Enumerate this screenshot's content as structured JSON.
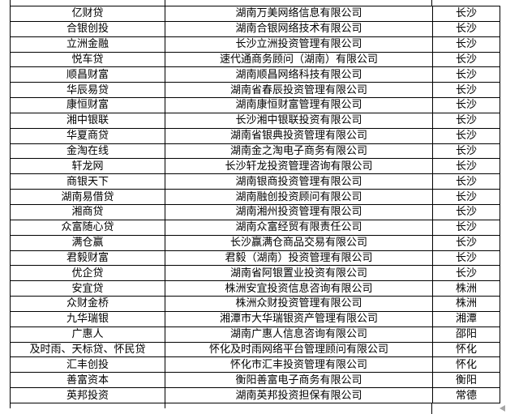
{
  "colors": {
    "background": "#ffffff",
    "border": "#000000",
    "text": "#000000",
    "artifact_arrow": "#a6a6a6"
  },
  "table": {
    "column_keys": [
      "platform",
      "company",
      "city"
    ],
    "rows": [
      {
        "platform": "亿财贷",
        "company": "湖南万美网络信息有限公司",
        "city": "长沙"
      },
      {
        "platform": "合银创投",
        "company": "湖南合银网络技术有限公司",
        "city": "长沙"
      },
      {
        "platform": "立洲金融",
        "company": "长沙立洲投资管理有限公司",
        "city": "长沙"
      },
      {
        "platform": "悦车贷",
        "company": "速代通商务顾问（湖南）有限公司",
        "city": "长沙"
      },
      {
        "platform": "顺昌财富",
        "company": "湖南顺昌网络科技有限公司",
        "city": "长沙"
      },
      {
        "platform": "华辰易贷",
        "company": "湖南省春辰投资管理有限公司",
        "city": "长沙"
      },
      {
        "platform": "康恒财富",
        "company": "湖南康恒财富管理有限公司",
        "city": "长沙"
      },
      {
        "platform": "湘中银联",
        "company": "长沙湘中银联投资有限公司",
        "city": "长沙"
      },
      {
        "platform": "华夏商贷",
        "company": "湖南省银典投资管理有限公司",
        "city": "长沙"
      },
      {
        "platform": "金淘在线",
        "company": "湖南金之淘电子商务有限公司",
        "city": "长沙"
      },
      {
        "platform": "轩龙网",
        "company": "长沙轩龙投资管理咨询有限公司",
        "city": "长沙"
      },
      {
        "platform": "商银天下",
        "company": "湖南银商投资管理有限公司",
        "city": "长沙"
      },
      {
        "platform": "湖南易借贷",
        "company": "湖南融创投资顾问有限公司",
        "city": "长沙"
      },
      {
        "platform": "湘商贷",
        "company": "湖南湘州投资管理有限公司",
        "city": "长沙"
      },
      {
        "platform": "众富随心贷",
        "company": "湖南众富经贸有限责任公司",
        "city": "长沙"
      },
      {
        "platform": "满仓赢",
        "company": "长沙赢满仓商品交易有限公司",
        "city": "长沙"
      },
      {
        "platform": "君毅财富",
        "company": "君毅（湖南）投资管理有限公司",
        "city": "长沙"
      },
      {
        "platform": "优企贷",
        "company": "湖南省阿银置业投资有限公司",
        "city": "长沙"
      },
      {
        "platform": "安宜贷",
        "company": "株洲安宜投资信息咨询有限公司",
        "city": "株洲"
      },
      {
        "platform": "众财金桥",
        "company": "株洲众财投资管理有限公司",
        "city": "株洲"
      },
      {
        "platform": "九华瑞银",
        "company": "湘潭市大华瑞银资产管理有限公司",
        "city": "湘潭"
      },
      {
        "platform": "广惠人",
        "company": "湖南广惠人信息咨询有限公司",
        "city": "邵阳"
      },
      {
        "platform": "及时雨、天标贷、怀民贷",
        "company": "怀化及时雨网络平台管理顾问有限公司",
        "city": "怀化"
      },
      {
        "platform": "汇丰创投",
        "company": "怀化市汇丰投资管理有限公司",
        "city": "怀化"
      },
      {
        "platform": "善富资本",
        "company": "衡阳善富电子商务有限公司",
        "city": "衡阳"
      },
      {
        "platform": "英邦投资",
        "company": "湖南英邦投资担保有限公司",
        "city": "常德"
      }
    ]
  }
}
